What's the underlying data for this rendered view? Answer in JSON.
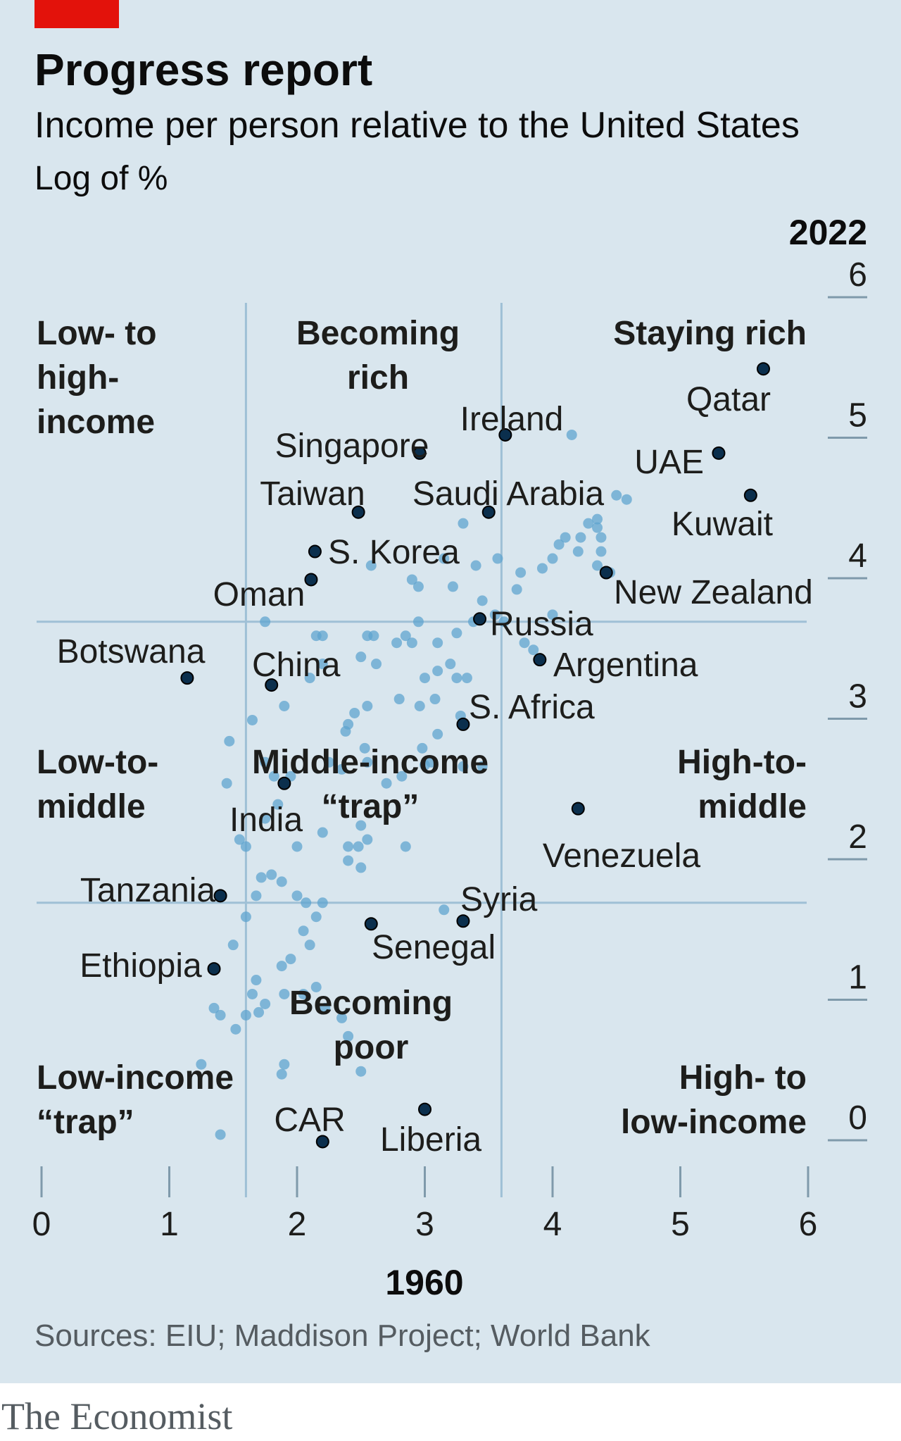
{
  "header": {
    "title": "Progress report",
    "subtitle": "Income per person relative to the United States",
    "unit": "Log of %"
  },
  "footer": {
    "source": "Sources: EIU; Maddison Project; World Bank",
    "brand": "The Economist"
  },
  "colors": {
    "accent": "#e3120b",
    "background": "#d9e6ee",
    "dot_light": "#5fa4cf",
    "dot_dark": "#0b2f4d",
    "divider": "#9fc0d6",
    "axis_line": "#7f9aab"
  },
  "chart_data": {
    "type": "scatter",
    "title": "Progress report",
    "subtitle": "Income per person relative to the United States",
    "xlabel": "1960",
    "ylabel": "2022",
    "xlim": [
      0,
      6
    ],
    "ylim": [
      0,
      6
    ],
    "x_ticks": [
      "0",
      "1",
      "2",
      "3",
      "4",
      "5",
      "6"
    ],
    "y_ticks": [
      "0",
      "1",
      "2",
      "3",
      "4",
      "5",
      "6"
    ],
    "thresholds": {
      "x": [
        1.6,
        3.6
      ],
      "y": [
        1.6,
        3.6
      ]
    },
    "quadrants": [
      {
        "lines": [
          "Low- to",
          "high-",
          "income"
        ]
      },
      {
        "lines": [
          "Becoming",
          "rich"
        ]
      },
      {
        "lines": [
          "Staying rich"
        ]
      },
      {
        "lines": [
          "Low-to-",
          "middle"
        ]
      },
      {
        "lines": [
          "Middle-income",
          "“trap”"
        ]
      },
      {
        "lines": [
          "High-to-",
          "middle"
        ]
      },
      {
        "lines": [
          "Becoming",
          "poor"
        ]
      },
      {
        "lines": [
          "Low-income",
          "“trap”"
        ]
      },
      {
        "lines": [
          "High- to",
          "low-income"
        ]
      }
    ],
    "labeled_points": [
      {
        "name": "Qatar",
        "x": 5.65,
        "y": 5.4
      },
      {
        "name": "UAE",
        "x": 5.3,
        "y": 4.8
      },
      {
        "name": "Kuwait",
        "x": 5.55,
        "y": 4.5
      },
      {
        "name": "New Zealand",
        "x": 4.42,
        "y": 3.95
      },
      {
        "name": "Ireland",
        "x": 3.63,
        "y": 4.93
      },
      {
        "name": "Singapore",
        "x": 2.96,
        "y": 4.8
      },
      {
        "name": "Saudi Arabia",
        "x": 3.5,
        "y": 4.38
      },
      {
        "name": "Taiwan",
        "x": 2.48,
        "y": 4.38
      },
      {
        "name": "S. Korea",
        "x": 2.14,
        "y": 4.1
      },
      {
        "name": "Oman",
        "x": 2.11,
        "y": 3.9
      },
      {
        "name": "Russia",
        "x": 3.43,
        "y": 3.62
      },
      {
        "name": "Argentina",
        "x": 3.9,
        "y": 3.33
      },
      {
        "name": "Botswana",
        "x": 1.14,
        "y": 3.2
      },
      {
        "name": "China",
        "x": 1.8,
        "y": 3.15
      },
      {
        "name": "S. Africa",
        "x": 3.3,
        "y": 2.87
      },
      {
        "name": "India",
        "x": 1.9,
        "y": 2.45
      },
      {
        "name": "Venezuela",
        "x": 4.2,
        "y": 2.27
      },
      {
        "name": "Tanzania",
        "x": 1.4,
        "y": 1.65
      },
      {
        "name": "Syria",
        "x": 3.3,
        "y": 1.47
      },
      {
        "name": "Senegal",
        "x": 2.58,
        "y": 1.45
      },
      {
        "name": "Ethiopia",
        "x": 1.35,
        "y": 1.13
      },
      {
        "name": "Liberia",
        "x": 3.0,
        "y": 0.13
      },
      {
        "name": "CAR",
        "x": 2.2,
        "y": -0.1
      }
    ],
    "other_points": [
      [
        4.15,
        4.93
      ],
      [
        4.58,
        4.47
      ],
      [
        4.5,
        4.5
      ],
      [
        4.35,
        4.33
      ],
      [
        4.35,
        4.27
      ],
      [
        4.28,
        4.3
      ],
      [
        4.22,
        4.2
      ],
      [
        4.1,
        4.2
      ],
      [
        4.05,
        4.15
      ],
      [
        4.0,
        4.05
      ],
      [
        3.92,
        3.98
      ],
      [
        4.38,
        4.2
      ],
      [
        4.35,
        4.0
      ],
      [
        4.45,
        3.95
      ],
      [
        4.38,
        4.1
      ],
      [
        4.2,
        4.1
      ],
      [
        3.3,
        4.3
      ],
      [
        3.15,
        4.05
      ],
      [
        3.22,
        3.85
      ],
      [
        3.4,
        4.0
      ],
      [
        3.57,
        4.05
      ],
      [
        3.75,
        3.95
      ],
      [
        3.72,
        3.83
      ],
      [
        3.45,
        3.75
      ],
      [
        3.55,
        3.65
      ],
      [
        3.38,
        3.6
      ],
      [
        3.25,
        3.52
      ],
      [
        3.2,
        3.3
      ],
      [
        3.1,
        3.25
      ],
      [
        3.25,
        3.2
      ],
      [
        3.33,
        3.2
      ],
      [
        3.0,
        3.2
      ],
      [
        2.96,
        3.0
      ],
      [
        3.08,
        3.05
      ],
      [
        3.28,
        2.93
      ],
      [
        3.1,
        2.8
      ],
      [
        2.98,
        2.7
      ],
      [
        2.8,
        3.05
      ],
      [
        2.55,
        3.0
      ],
      [
        2.45,
        2.95
      ],
      [
        2.4,
        2.87
      ],
      [
        2.38,
        2.82
      ],
      [
        2.53,
        2.7
      ],
      [
        2.85,
        3.5
      ],
      [
        2.9,
        3.45
      ],
      [
        2.62,
        3.3
      ],
      [
        2.6,
        3.5
      ],
      [
        2.95,
        3.6
      ],
      [
        2.78,
        3.45
      ],
      [
        2.5,
        3.35
      ],
      [
        2.55,
        3.5
      ],
      [
        2.58,
        4.0
      ],
      [
        2.95,
        3.85
      ],
      [
        2.9,
        3.9
      ],
      [
        3.1,
        3.45
      ],
      [
        3.0,
        2.58
      ],
      [
        2.82,
        2.5
      ],
      [
        2.55,
        2.6
      ],
      [
        2.25,
        2.6
      ],
      [
        2.35,
        2.55
      ],
      [
        2.7,
        2.45
      ],
      [
        3.05,
        2.6
      ],
      [
        3.3,
        2.57
      ],
      [
        3.45,
        2.57
      ],
      [
        2.1,
        3.2
      ],
      [
        2.15,
        3.5
      ],
      [
        1.75,
        3.6
      ],
      [
        1.9,
        3.0
      ],
      [
        2.2,
        3.3
      ],
      [
        2.2,
        3.5
      ],
      [
        1.85,
        2.3
      ],
      [
        1.95,
        2.5
      ],
      [
        2.5,
        2.15
      ],
      [
        2.55,
        2.05
      ],
      [
        2.48,
        2.0
      ],
      [
        2.5,
        1.85
      ],
      [
        2.4,
        1.9
      ],
      [
        2.4,
        2.0
      ],
      [
        2.2,
        2.1
      ],
      [
        2.85,
        2.0
      ],
      [
        2.0,
        2.0
      ],
      [
        1.6,
        2.0
      ],
      [
        1.55,
        2.05
      ],
      [
        1.45,
        2.45
      ],
      [
        1.47,
        2.75
      ],
      [
        1.65,
        2.9
      ],
      [
        1.75,
        2.6
      ],
      [
        1.82,
        2.5
      ],
      [
        1.75,
        2.2
      ],
      [
        1.8,
        1.8
      ],
      [
        1.88,
        1.75
      ],
      [
        2.0,
        1.65
      ],
      [
        2.07,
        1.6
      ],
      [
        2.15,
        1.5
      ],
      [
        2.2,
        1.6
      ],
      [
        2.05,
        1.4
      ],
      [
        2.1,
        1.3
      ],
      [
        1.72,
        1.78
      ],
      [
        1.68,
        1.65
      ],
      [
        1.6,
        1.5
      ],
      [
        1.5,
        1.3
      ],
      [
        1.95,
        1.2
      ],
      [
        1.88,
        1.15
      ],
      [
        1.68,
        1.05
      ],
      [
        1.65,
        0.95
      ],
      [
        1.75,
        0.88
      ],
      [
        1.7,
        0.82
      ],
      [
        1.6,
        0.8
      ],
      [
        1.52,
        0.7
      ],
      [
        1.35,
        0.85
      ],
      [
        1.4,
        0.8
      ],
      [
        1.9,
        0.95
      ],
      [
        2.05,
        0.95
      ],
      [
        2.15,
        1.0
      ],
      [
        2.22,
        0.85
      ],
      [
        2.35,
        0.78
      ],
      [
        2.4,
        0.65
      ],
      [
        2.5,
        0.4
      ],
      [
        1.9,
        0.45
      ],
      [
        1.88,
        0.38
      ],
      [
        1.25,
        0.45
      ],
      [
        1.4,
        -0.05
      ],
      [
        3.15,
        1.55
      ],
      [
        3.62,
        3.6
      ],
      [
        3.78,
        3.45
      ],
      [
        3.85,
        3.4
      ],
      [
        4.0,
        3.65
      ]
    ]
  }
}
